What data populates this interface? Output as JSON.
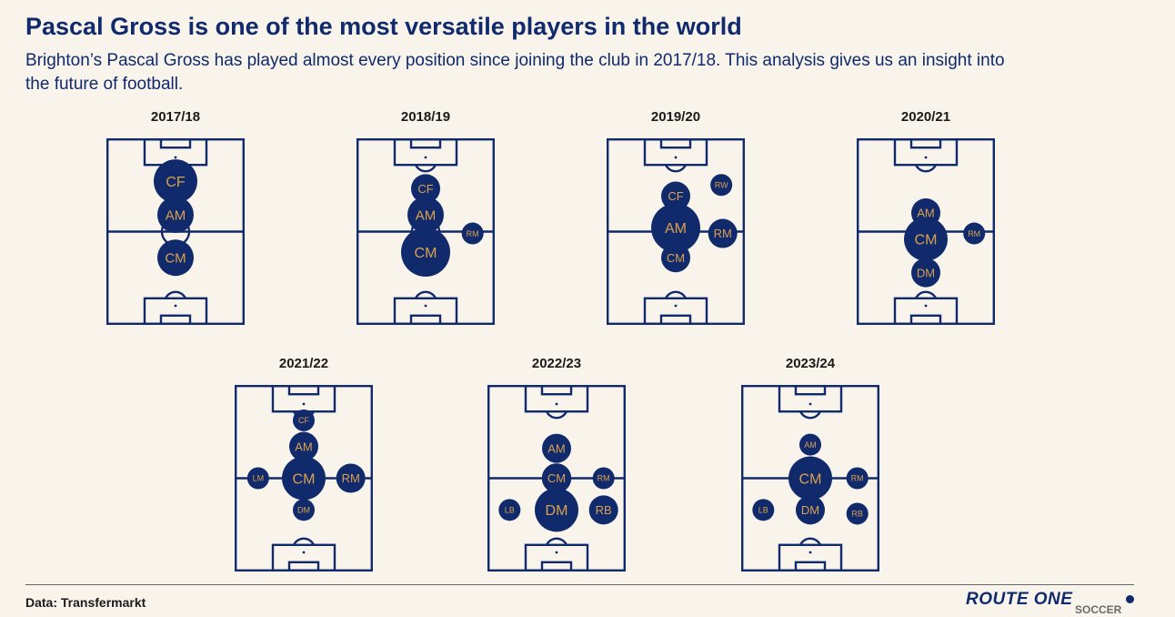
{
  "title": "Pascal Gross is one of the most versatile players in the world",
  "subtitle": "Brighton’s Pascal Gross has played almost every position since joining the club in 2017/18. This analysis gives us an insight into the future of football.",
  "source": "Data: Transfermarkt",
  "logo": {
    "main": "ROUTE ONE",
    "sub": "SOCCER"
  },
  "colors": {
    "background": "#f8f3eb",
    "pitch_line": "#102a6b",
    "bubble": "#102a6b",
    "bubble_text": "#d9a050"
  },
  "chart_data": {
    "type": "bubble-pitch",
    "note_scale": "bubble size = relative share of appearances in that position (1 = smallest, 5 = largest)",
    "seasons": [
      {
        "season": "2017/18",
        "positions": [
          {
            "pos": "CF",
            "x": 0.5,
            "y": 0.23,
            "size": 4
          },
          {
            "pos": "AM",
            "x": 0.5,
            "y": 0.41,
            "size": 3
          },
          {
            "pos": "CM",
            "x": 0.5,
            "y": 0.64,
            "size": 3
          }
        ]
      },
      {
        "season": "2018/19",
        "positions": [
          {
            "pos": "CF",
            "x": 0.5,
            "y": 0.27,
            "size": 2
          },
          {
            "pos": "AM",
            "x": 0.5,
            "y": 0.41,
            "size": 3
          },
          {
            "pos": "CM",
            "x": 0.5,
            "y": 0.61,
            "size": 5
          },
          {
            "pos": "RM",
            "x": 0.84,
            "y": 0.51,
            "size": 1
          }
        ]
      },
      {
        "season": "2019/20",
        "positions": [
          {
            "pos": "CF",
            "x": 0.5,
            "y": 0.31,
            "size": 2
          },
          {
            "pos": "RW",
            "x": 0.83,
            "y": 0.25,
            "size": 1
          },
          {
            "pos": "AM",
            "x": 0.5,
            "y": 0.48,
            "size": 5
          },
          {
            "pos": "RM",
            "x": 0.84,
            "y": 0.51,
            "size": 2
          },
          {
            "pos": "CM",
            "x": 0.5,
            "y": 0.64,
            "size": 2
          }
        ]
      },
      {
        "season": "2020/21",
        "positions": [
          {
            "pos": "AM",
            "x": 0.5,
            "y": 0.4,
            "size": 2
          },
          {
            "pos": "CM",
            "x": 0.5,
            "y": 0.54,
            "size": 4
          },
          {
            "pos": "RM",
            "x": 0.85,
            "y": 0.51,
            "size": 1
          },
          {
            "pos": "DM",
            "x": 0.5,
            "y": 0.72,
            "size": 2
          }
        ]
      },
      {
        "season": "2021/22",
        "positions": [
          {
            "pos": "CF",
            "x": 0.5,
            "y": 0.19,
            "size": 1
          },
          {
            "pos": "AM",
            "x": 0.5,
            "y": 0.33,
            "size": 2
          },
          {
            "pos": "LM",
            "x": 0.17,
            "y": 0.5,
            "size": 1
          },
          {
            "pos": "CM",
            "x": 0.5,
            "y": 0.5,
            "size": 4
          },
          {
            "pos": "RM",
            "x": 0.84,
            "y": 0.5,
            "size": 2
          },
          {
            "pos": "DM",
            "x": 0.5,
            "y": 0.67,
            "size": 1
          }
        ]
      },
      {
        "season": "2022/23",
        "positions": [
          {
            "pos": "AM",
            "x": 0.5,
            "y": 0.34,
            "size": 2
          },
          {
            "pos": "CM",
            "x": 0.5,
            "y": 0.5,
            "size": 2
          },
          {
            "pos": "RM",
            "x": 0.84,
            "y": 0.5,
            "size": 1
          },
          {
            "pos": "LB",
            "x": 0.16,
            "y": 0.67,
            "size": 1
          },
          {
            "pos": "DM",
            "x": 0.5,
            "y": 0.67,
            "size": 4
          },
          {
            "pos": "RB",
            "x": 0.84,
            "y": 0.67,
            "size": 2
          }
        ]
      },
      {
        "season": "2023/24",
        "positions": [
          {
            "pos": "AM",
            "x": 0.5,
            "y": 0.32,
            "size": 1
          },
          {
            "pos": "CM",
            "x": 0.5,
            "y": 0.5,
            "size": 4
          },
          {
            "pos": "RM",
            "x": 0.84,
            "y": 0.5,
            "size": 1
          },
          {
            "pos": "LB",
            "x": 0.16,
            "y": 0.67,
            "size": 1
          },
          {
            "pos": "DM",
            "x": 0.5,
            "y": 0.67,
            "size": 2
          },
          {
            "pos": "RB",
            "x": 0.84,
            "y": 0.69,
            "size": 1
          }
        ]
      }
    ]
  }
}
